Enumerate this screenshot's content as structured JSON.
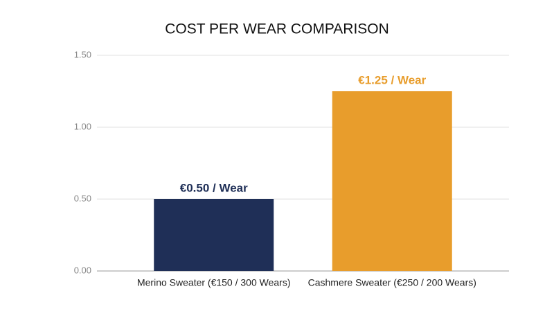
{
  "chart_data": {
    "type": "bar",
    "title": "COST PER WEAR COMPARISON",
    "categories": [
      "Merino Sweater (€150 / 300 Wears)",
      "Cashmere Sweater (€250 / 200 Wears)"
    ],
    "values": [
      0.5,
      1.25
    ],
    "value_labels": [
      "€0.50 / Wear",
      "€1.25 / Wear"
    ],
    "colors": [
      "#1f2f57",
      "#e89d2c"
    ],
    "ylim": [
      0,
      1.5
    ],
    "yticks": [
      {
        "value": 0,
        "label": "0.00"
      },
      {
        "value": 0.5,
        "label": "0.50"
      },
      {
        "value": 1,
        "label": "1.00"
      },
      {
        "value": 1.5,
        "label": "1.50"
      }
    ],
    "grid": true
  }
}
